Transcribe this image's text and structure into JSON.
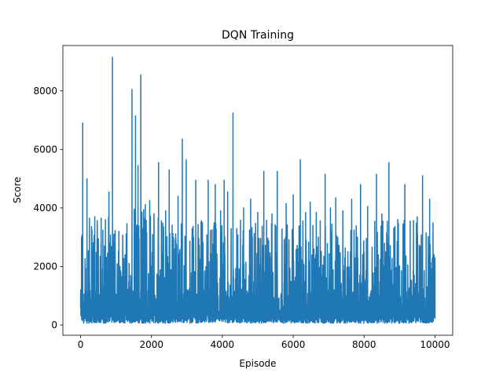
{
  "chart_data": {
    "type": "line",
    "title": "DQN Training",
    "xlabel": "Episode",
    "ylabel": "Score",
    "xlim": [
      -500,
      10500
    ],
    "ylim": [
      -350,
      9550
    ],
    "xticks": [
      0,
      2000,
      4000,
      6000,
      8000,
      10000
    ],
    "xtick_labels": [
      "0",
      "2000",
      "4000",
      "6000",
      "8000",
      "10000"
    ],
    "yticks": [
      0,
      2000,
      4000,
      6000,
      8000
    ],
    "ytick_labels": [
      "0",
      "2000",
      "4000",
      "6000",
      "8000"
    ],
    "grid": false,
    "legend": "none",
    "color": "#1f77b4",
    "episodes": 10000,
    "baseline_min": 60,
    "peaks": [
      {
        "x": 60,
        "y": 6900
      },
      {
        "x": 180,
        "y": 5000
      },
      {
        "x": 250,
        "y": 3650
      },
      {
        "x": 400,
        "y": 3700
      },
      {
        "x": 580,
        "y": 3650
      },
      {
        "x": 700,
        "y": 3600
      },
      {
        "x": 800,
        "y": 4550
      },
      {
        "x": 900,
        "y": 9150
      },
      {
        "x": 1080,
        "y": 3200
      },
      {
        "x": 1450,
        "y": 8050
      },
      {
        "x": 1550,
        "y": 7150
      },
      {
        "x": 1620,
        "y": 5450
      },
      {
        "x": 1700,
        "y": 8550
      },
      {
        "x": 1780,
        "y": 3950
      },
      {
        "x": 1950,
        "y": 4250
      },
      {
        "x": 2200,
        "y": 5550
      },
      {
        "x": 2400,
        "y": 3900
      },
      {
        "x": 2500,
        "y": 5300
      },
      {
        "x": 2750,
        "y": 4400
      },
      {
        "x": 2870,
        "y": 6350
      },
      {
        "x": 2980,
        "y": 5650
      },
      {
        "x": 3250,
        "y": 4950
      },
      {
        "x": 3400,
        "y": 3500
      },
      {
        "x": 3600,
        "y": 4950
      },
      {
        "x": 3800,
        "y": 4800
      },
      {
        "x": 3950,
        "y": 3900
      },
      {
        "x": 4050,
        "y": 4950
      },
      {
        "x": 4150,
        "y": 4550
      },
      {
        "x": 4300,
        "y": 7250
      },
      {
        "x": 4600,
        "y": 4000
      },
      {
        "x": 4800,
        "y": 4300
      },
      {
        "x": 5000,
        "y": 3850
      },
      {
        "x": 5170,
        "y": 5250
      },
      {
        "x": 5400,
        "y": 3800
      },
      {
        "x": 5550,
        "y": 5250
      },
      {
        "x": 5800,
        "y": 4150
      },
      {
        "x": 6000,
        "y": 4450
      },
      {
        "x": 6200,
        "y": 5650
      },
      {
        "x": 6350,
        "y": 3850
      },
      {
        "x": 6480,
        "y": 4200
      },
      {
        "x": 6650,
        "y": 3850
      },
      {
        "x": 6900,
        "y": 5150
      },
      {
        "x": 7050,
        "y": 4000
      },
      {
        "x": 7200,
        "y": 4350
      },
      {
        "x": 7400,
        "y": 3900
      },
      {
        "x": 7650,
        "y": 4300
      },
      {
        "x": 7900,
        "y": 4800
      },
      {
        "x": 8100,
        "y": 4050
      },
      {
        "x": 8350,
        "y": 5150
      },
      {
        "x": 8500,
        "y": 3800
      },
      {
        "x": 8700,
        "y": 5550
      },
      {
        "x": 8950,
        "y": 3600
      },
      {
        "x": 9150,
        "y": 4800
      },
      {
        "x": 9300,
        "y": 3550
      },
      {
        "x": 9500,
        "y": 3700
      },
      {
        "x": 9650,
        "y": 5100
      },
      {
        "x": 9750,
        "y": 3150
      },
      {
        "x": 9850,
        "y": 4300
      },
      {
        "x": 10000,
        "y": 2300
      }
    ]
  }
}
